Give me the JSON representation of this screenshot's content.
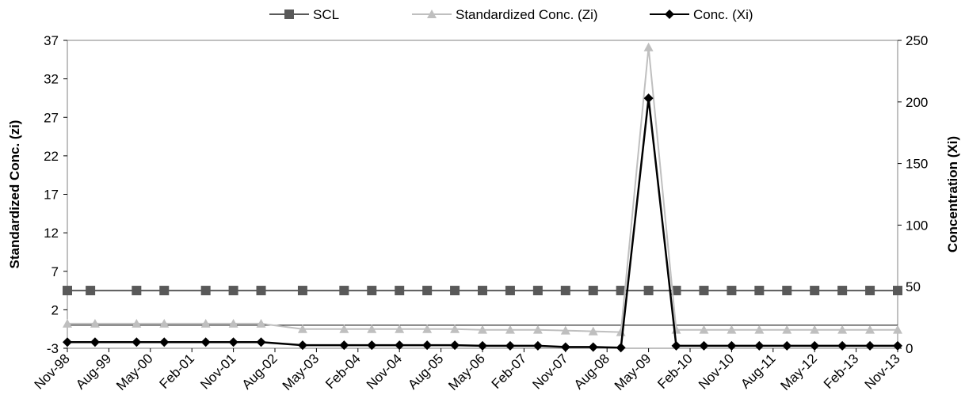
{
  "chart_data": {
    "type": "line",
    "title": "",
    "legend": {
      "placement": "top",
      "entries": [
        {
          "label": "SCL",
          "marker": "square",
          "color": "#595959"
        },
        {
          "label": "Standardized Conc. (Zi)",
          "marker": "triangle",
          "color": "#bfbfbf"
        },
        {
          "label": "Conc. (Xi)",
          "marker": "diamond",
          "color": "#000000"
        }
      ]
    },
    "y_left": {
      "label": "Standardized Conc. (zi)",
      "range": [
        -3,
        37
      ],
      "ticks": [
        "37",
        "32",
        "27",
        "22",
        "17",
        "12",
        "7",
        "2",
        "-3"
      ],
      "tick_values": [
        37,
        32,
        27,
        22,
        17,
        12,
        7,
        2,
        -3
      ]
    },
    "y_right": {
      "label": "Concentration (Xi)",
      "range": [
        0,
        250
      ],
      "ticks": [
        "250",
        "200",
        "150",
        "100",
        "50",
        "0"
      ],
      "tick_values": [
        250,
        200,
        150,
        100,
        50,
        0
      ]
    },
    "x_axis": {
      "type": "date",
      "range": [
        "1998-11",
        "2013-11"
      ],
      "tick_labels": [
        "Nov-98",
        "Aug-99",
        "May-00",
        "Feb-01",
        "Nov-01",
        "Aug-02",
        "May-03",
        "Feb-04",
        "Nov-04",
        "Aug-05",
        "May-06",
        "Feb-07",
        "Nov-07",
        "Aug-08",
        "May-09",
        "Feb-10",
        "Nov-10",
        "Aug-11",
        "May-12",
        "Feb-13",
        "Nov-13"
      ],
      "tick_dates": [
        "1998-11",
        "1999-08",
        "2000-05",
        "2001-02",
        "2001-11",
        "2002-08",
        "2003-05",
        "2004-02",
        "2004-11",
        "2005-08",
        "2006-05",
        "2007-02",
        "2007-11",
        "2008-08",
        "2009-05",
        "2010-02",
        "2010-11",
        "2011-08",
        "2012-05",
        "2013-02",
        "2013-11"
      ]
    },
    "x_dates": [
      "1998-11",
      "1999-05",
      "2000-02",
      "2000-08",
      "2001-05",
      "2001-11",
      "2002-05",
      "2003-02",
      "2003-11",
      "2004-05",
      "2004-11",
      "2005-05",
      "2005-11",
      "2006-05",
      "2006-11",
      "2007-05",
      "2007-11",
      "2008-05",
      "2008-11",
      "2009-05",
      "2009-11",
      "2010-05",
      "2010-11",
      "2011-05",
      "2011-11",
      "2012-05",
      "2012-11",
      "2013-05",
      "2013-11"
    ],
    "x_dates_scl": [
      "1998-11",
      "1999-04",
      "2000-02",
      "2000-08",
      "2001-05",
      "2001-11",
      "2002-05",
      "2003-02",
      "2003-11",
      "2004-05",
      "2004-11",
      "2005-05",
      "2005-11",
      "2006-05",
      "2006-11",
      "2007-05",
      "2007-11",
      "2008-05",
      "2008-11",
      "2009-05",
      "2009-11",
      "2010-05",
      "2010-11",
      "2011-05",
      "2011-11",
      "2012-05",
      "2012-11",
      "2013-05",
      "2013-11"
    ],
    "series": [
      {
        "name": "SCL",
        "axis": "left",
        "marker": "square",
        "color": "#595959",
        "x_key": "x_dates_scl",
        "values": [
          4.5,
          4.5,
          4.5,
          4.5,
          4.5,
          4.5,
          4.5,
          4.5,
          4.5,
          4.5,
          4.5,
          4.5,
          4.5,
          4.5,
          4.5,
          4.5,
          4.5,
          4.5,
          4.5,
          4.5,
          4.5,
          4.5,
          4.5,
          4.5,
          4.5,
          4.5,
          4.5,
          4.5,
          4.5
        ]
      },
      {
        "name": "Standardized Conc. (Zi)",
        "axis": "left",
        "marker": "triangle",
        "color": "#bfbfbf",
        "x_key": "x_dates",
        "values": [
          0.2,
          0.2,
          0.2,
          0.2,
          0.2,
          0.2,
          0.2,
          -0.5,
          -0.5,
          -0.5,
          -0.5,
          -0.5,
          -0.5,
          -0.6,
          -0.6,
          -0.6,
          -0.7,
          -0.8,
          -0.9,
          36.1,
          -0.6,
          -0.6,
          -0.6,
          -0.6,
          -0.6,
          -0.6,
          -0.6,
          -0.6,
          -0.6
        ]
      },
      {
        "name": "Conc. (Xi)",
        "axis": "right",
        "marker": "diamond",
        "color": "#000000",
        "x_key": "x_dates",
        "values": [
          5,
          5,
          5,
          5,
          5,
          5,
          5,
          2.5,
          2.5,
          2.5,
          2.5,
          2.5,
          2.5,
          2,
          2,
          2,
          1,
          1,
          0.5,
          203,
          2,
          2,
          2,
          2,
          2,
          2,
          2,
          2,
          2
        ]
      }
    ],
    "grid": false,
    "reference_line": {
      "axis": "left",
      "value": 0
    }
  }
}
